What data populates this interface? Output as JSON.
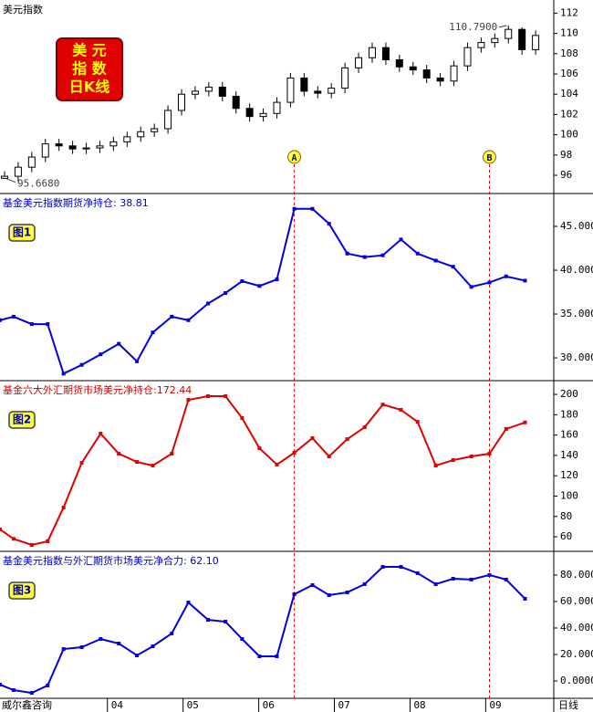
{
  "chart_data": [
    {
      "type": "candlestick",
      "title": "美元指数",
      "title_color": "#000000",
      "badge": [
        "美 元",
        "指 数",
        "日K线"
      ],
      "x": [
        2.64,
        2.82,
        3.0,
        3.18,
        3.36,
        3.54,
        3.72,
        3.9,
        4.08,
        4.26,
        4.44,
        4.62,
        4.8,
        4.98,
        5.16,
        5.34,
        5.52,
        5.7,
        5.88,
        6.06,
        6.24,
        6.42,
        6.6,
        6.78,
        6.96,
        7.14,
        7.32,
        7.5,
        7.68,
        7.86,
        8.04,
        8.22,
        8.4,
        8.58,
        8.76,
        8.94,
        9.12,
        9.3,
        9.48,
        9.66
      ],
      "open": [
        95.7,
        95.9,
        96.8,
        97.8,
        99.1,
        98.9,
        98.6,
        98.7,
        98.9,
        99.3,
        99.8,
        100.3,
        100.6,
        102.4,
        104,
        104.3,
        104.7,
        103.8,
        102.6,
        101.8,
        102.1,
        103.2,
        105.6,
        104.3,
        104.1,
        104.6,
        106.6,
        107.6,
        108.6,
        107.4,
        106.7,
        106.4,
        105.6,
        105.3,
        106.8,
        108.6,
        109.1,
        109.5,
        110.4,
        108.4
      ],
      "high": [
        96.4,
        97.3,
        98.3,
        99.6,
        99.6,
        99.4,
        99.2,
        99.4,
        99.8,
        100.3,
        100.8,
        101.1,
        102.9,
        104.5,
        104.8,
        105.2,
        105.2,
        104.3,
        103.1,
        102.6,
        103.7,
        106.1,
        106.1,
        104.8,
        105.1,
        107.1,
        108.1,
        109.1,
        109.1,
        107.9,
        107.2,
        106.9,
        106.1,
        107.3,
        109.1,
        109.6,
        110,
        110.79,
        110.6,
        110.3
      ],
      "low": [
        95.668,
        95.4,
        96.3,
        97.3,
        98.4,
        98.1,
        98.1,
        98.2,
        98.4,
        98.8,
        99.3,
        99.8,
        100.1,
        101.9,
        103.5,
        103.8,
        103.3,
        102.1,
        101.3,
        101.3,
        101.6,
        102.7,
        103.8,
        103.6,
        103.6,
        104.1,
        106.1,
        107.1,
        106.9,
        106.2,
        105.9,
        105.1,
        104.8,
        104.8,
        106.3,
        108.1,
        108.6,
        109,
        107.9,
        107.9
      ],
      "close": [
        95.9,
        96.8,
        97.8,
        99.1,
        98.9,
        98.6,
        98.7,
        98.9,
        99.3,
        99.8,
        100.3,
        100.6,
        102.4,
        104,
        104.3,
        104.7,
        103.8,
        102.6,
        101.8,
        102.1,
        103.2,
        105.6,
        104.3,
        104.1,
        104.6,
        106.6,
        107.6,
        108.6,
        107.4,
        106.7,
        106.4,
        105.6,
        105.3,
        106.8,
        108.6,
        109.1,
        109.5,
        110.4,
        108.4,
        109.8
      ],
      "color": "#000000",
      "xlim": [
        2.58,
        9.9
      ],
      "ylim": [
        94.2,
        113.3
      ],
      "yticks": [
        96,
        98,
        100,
        102,
        104,
        106,
        108,
        110,
        112
      ],
      "annotations": [
        {
          "text": "110.7900",
          "x": 9.3,
          "y": 110.79
        },
        {
          "text": "95.6680",
          "x": 2.64,
          "y": 95.668
        }
      ],
      "markers": [
        {
          "text": "A",
          "x": 6.47
        },
        {
          "text": "B",
          "x": 9.05
        }
      ],
      "marker_line_color": "#d00000"
    },
    {
      "type": "line",
      "title": "基金美元指数期货净持仓: 38.81",
      "title_color": "#0000c0",
      "label": "图1",
      "x": [
        2.58,
        2.76,
        3.0,
        3.21,
        3.42,
        3.66,
        3.91,
        4.15,
        4.39,
        4.6,
        4.85,
        5.07,
        5.33,
        5.56,
        5.78,
        6.01,
        6.24,
        6.47,
        6.71,
        6.93,
        7.17,
        7.4,
        7.64,
        7.88,
        8.1,
        8.34,
        8.57,
        8.81,
        9.05,
        9.27,
        9.52
      ],
      "series": [
        {
          "name": "基金美元指数期货净持仓",
          "color": "#0000e0",
          "values": [
            34.3,
            34.7,
            33.85,
            33.85,
            28.2,
            29.2,
            30.4,
            31.6,
            29.6,
            32.9,
            34.7,
            34.3,
            36.2,
            37.4,
            38.75,
            38.2,
            38.95,
            47.0,
            47.0,
            45.3,
            41.9,
            41.5,
            41.7,
            43.5,
            41.9,
            41.1,
            40.4,
            38.1,
            38.6,
            39.3,
            38.81
          ]
        }
      ],
      "xlim": [
        2.58,
        9.9
      ],
      "ylim": [
        27.4,
        48.75
      ],
      "yticks": [
        {
          "value": 30,
          "label": "30.0000"
        },
        {
          "value": 35,
          "label": "35.0000"
        },
        {
          "value": 40,
          "label": "40.0000"
        },
        {
          "value": 45,
          "label": "45.0000"
        }
      ]
    },
    {
      "type": "line",
      "title": "基金六大外汇期货市场美元净持仓:172.44",
      "title_color": "#d00000",
      "label": "图2",
      "x": [
        2.58,
        2.76,
        3.0,
        3.21,
        3.42,
        3.66,
        3.91,
        4.15,
        4.39,
        4.6,
        4.85,
        5.07,
        5.33,
        5.56,
        5.78,
        6.01,
        6.24,
        6.47,
        6.71,
        6.93,
        7.17,
        7.4,
        7.64,
        7.88,
        8.1,
        8.34,
        8.57,
        8.81,
        9.05,
        9.27,
        9.52
      ],
      "series": [
        {
          "name": "基金六大外汇期货市场美元净持仓",
          "color": "#e00000",
          "values": [
            67.3,
            58,
            52,
            55.6,
            88.8,
            132.7,
            161.4,
            141.7,
            133.6,
            130,
            141.7,
            194.6,
            198.2,
            198.2,
            176.7,
            147,
            131,
            142.6,
            157,
            139,
            156,
            167.7,
            190,
            184.8,
            173,
            130,
            135.4,
            139,
            141.7,
            166,
            172.44
          ]
        }
      ],
      "xlim": [
        2.58,
        9.9
      ],
      "ylim": [
        45.7,
        213.5
      ],
      "yticks": [
        60,
        80,
        100,
        120,
        140,
        160,
        180,
        200
      ]
    },
    {
      "type": "line",
      "title": "基金美元指数与外汇期货市场美元净合力: 62.10",
      "title_color": "#0000c0",
      "label": "图3",
      "x": [
        2.58,
        2.76,
        3.0,
        3.21,
        3.42,
        3.66,
        3.91,
        4.15,
        4.39,
        4.6,
        4.85,
        5.07,
        5.33,
        5.56,
        5.78,
        6.01,
        6.24,
        6.47,
        6.71,
        6.93,
        7.17,
        7.4,
        7.64,
        7.88,
        8.1,
        8.34,
        8.57,
        8.81,
        9.05,
        9.27,
        9.52
      ],
      "series": [
        {
          "name": "基金美元指数与外汇期货市场美元净合力",
          "color": "#0000e0",
          "values": [
            -2.8,
            -6.9,
            -9,
            -3.4,
            24.1,
            25.5,
            31.7,
            28.3,
            19.3,
            26.2,
            35.9,
            59.3,
            46.2,
            44.8,
            31.7,
            18.6,
            18.6,
            65.5,
            72.4,
            64.8,
            66.9,
            73.1,
            86.2,
            86.2,
            81.4,
            73.1,
            77.2,
            76.6,
            80,
            76.6,
            62.1
          ]
        }
      ],
      "xlim": [
        2.58,
        9.9
      ],
      "ylim": [
        -13.1,
        97.9
      ],
      "yticks": [
        {
          "value": 0,
          "label": "0.0000"
        },
        {
          "value": 20,
          "label": "20.0000"
        },
        {
          "value": 40,
          "label": "40.0000"
        },
        {
          "value": 60,
          "label": "60.0000"
        },
        {
          "value": 80,
          "label": "80.0000"
        }
      ],
      "xticks": [
        {
          "value": 4,
          "label": "04"
        },
        {
          "value": 5,
          "label": "05"
        },
        {
          "value": 6,
          "label": "06"
        },
        {
          "value": 7,
          "label": "07"
        },
        {
          "value": 8,
          "label": "08"
        },
        {
          "value": 9,
          "label": "09"
        }
      ]
    }
  ],
  "footer": {
    "source": "威尔鑫咨询",
    "period": "日线"
  }
}
